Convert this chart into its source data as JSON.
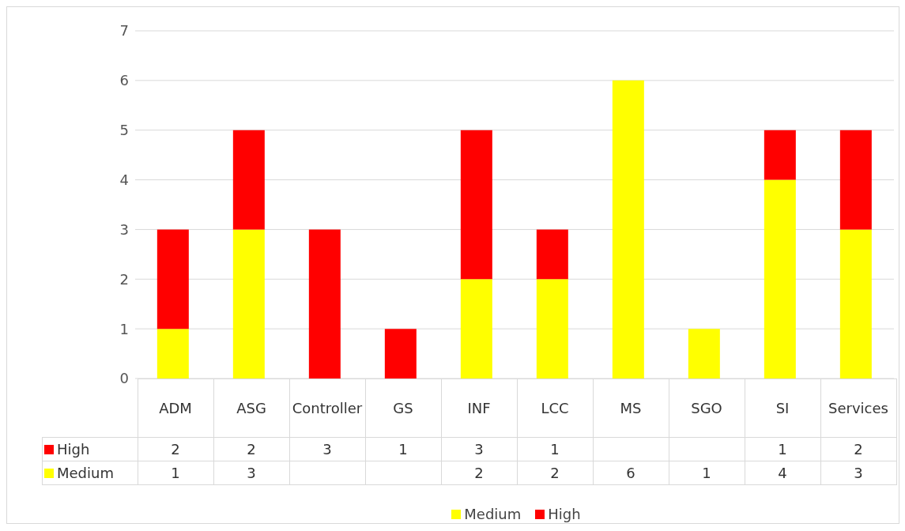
{
  "chart_data": {
    "type": "bar",
    "stacked": true,
    "categories": [
      "ADM",
      "ASG",
      "Controller",
      "GS",
      "INF",
      "LCC",
      "MS",
      "SGO",
      "SI",
      "Services"
    ],
    "series": [
      {
        "name": "Medium",
        "color": "#ffff00",
        "values": [
          1,
          3,
          null,
          null,
          2,
          2,
          6,
          1,
          4,
          3
        ]
      },
      {
        "name": "High",
        "color": "#ff0000",
        "values": [
          2,
          2,
          3,
          1,
          3,
          1,
          null,
          null,
          1,
          2
        ]
      }
    ],
    "ylim": [
      0,
      7
    ],
    "yticks": [
      0,
      1,
      2,
      3,
      4,
      5,
      6,
      7
    ],
    "grid": "y",
    "legend": "bottom",
    "data_labels": true
  }
}
